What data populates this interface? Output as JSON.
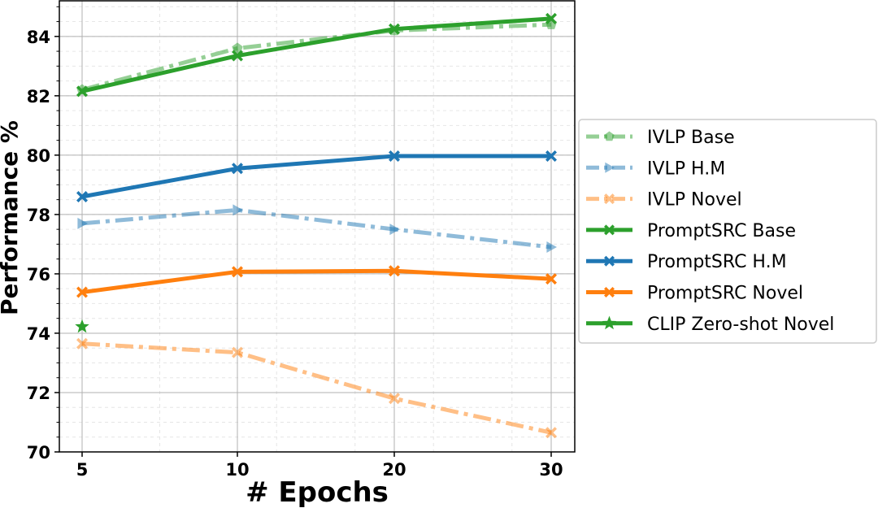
{
  "chart_data": {
    "type": "line",
    "title": "",
    "xlabel": "# Epochs",
    "ylabel": "Performance %",
    "x": [
      5,
      10,
      20,
      30
    ],
    "x_tick_labels": [
      "5",
      "10",
      "20",
      "30"
    ],
    "y_tick_labels": [
      "70",
      "72",
      "74",
      "76",
      "78",
      "80",
      "82",
      "84"
    ],
    "ylim": [
      70,
      85.2
    ],
    "grid": true,
    "legend_position": "right-outside",
    "series": [
      {
        "name": "IVLP Base",
        "values": [
          82.2,
          83.6,
          84.2,
          84.4
        ],
        "color": "#2ca02c",
        "style": "dashdot",
        "marker": "pentagon",
        "alpha": 0.5
      },
      {
        "name": "IVLP H.M",
        "values": [
          77.7,
          78.15,
          77.5,
          76.9
        ],
        "color": "#1f77b4",
        "style": "dashdot",
        "marker": "triangle-right",
        "alpha": 0.5
      },
      {
        "name": "IVLP Novel",
        "values": [
          73.65,
          73.35,
          71.8,
          70.65
        ],
        "color": "#ff7f0e",
        "style": "dashdot",
        "marker": "x",
        "alpha": 0.5
      },
      {
        "name": "PromptSRC Base",
        "values": [
          82.15,
          83.35,
          84.25,
          84.6
        ],
        "color": "#2ca02c",
        "style": "solid",
        "marker": "x",
        "alpha": 1
      },
      {
        "name": "PromptSRC H.M",
        "values": [
          78.6,
          79.55,
          79.97,
          79.97
        ],
        "color": "#1f77b4",
        "style": "solid",
        "marker": "x",
        "alpha": 1
      },
      {
        "name": "PromptSRC Novel",
        "values": [
          75.38,
          76.07,
          76.1,
          75.83
        ],
        "color": "#ff7f0e",
        "style": "solid",
        "marker": "x",
        "alpha": 1
      },
      {
        "name": "CLIP Zero-shot Novel",
        "values": [
          74.22,
          null,
          null,
          null
        ],
        "color": "#2ca02c",
        "style": "none",
        "marker": "star",
        "alpha": 1
      }
    ]
  }
}
